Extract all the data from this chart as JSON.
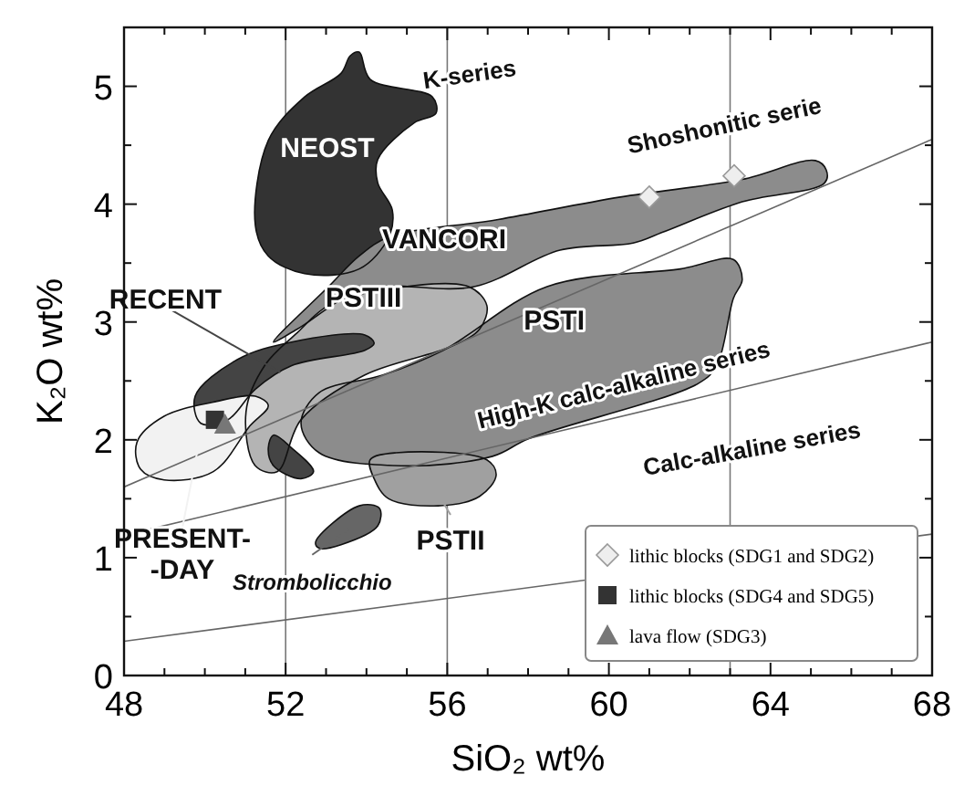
{
  "chart_data": {
    "type": "scatter",
    "xlabel": "SiO₂ wt%",
    "ylabel": "K₂O wt%",
    "xlim": [
      48,
      68
    ],
    "ylim": [
      0,
      5.5
    ],
    "xticks": [
      48,
      {
        "value": 49,
        "label": null
      },
      {
        "value": 50,
        "label": null
      },
      {
        "value": 51,
        "label": null
      },
      52,
      {
        "value": 53,
        "label": null
      },
      {
        "value": 54,
        "label": null
      },
      {
        "value": 55,
        "label": null
      },
      56,
      {
        "value": 57,
        "label": null
      },
      {
        "value": 58,
        "label": null
      },
      {
        "value": 59,
        "label": null
      },
      60,
      {
        "value": 61,
        "label": null
      },
      {
        "value": 62,
        "label": null
      },
      {
        "value": 63,
        "label": null
      },
      64,
      {
        "value": 65,
        "label": null
      },
      {
        "value": 66,
        "label": null
      },
      {
        "value": 67,
        "label": null
      },
      68
    ],
    "yticks": [
      0,
      {
        "value": 0.5,
        "label": null
      },
      1,
      {
        "value": 1.5,
        "label": null
      },
      2,
      {
        "value": 2.5,
        "label": null
      },
      3,
      {
        "value": 3.5,
        "label": null
      },
      4,
      {
        "value": 4.5,
        "label": null
      },
      5
    ],
    "legend": "bottom right",
    "grid": false,
    "ref_lines": [
      {
        "axis": "x",
        "value": 52,
        "color": "#777777"
      },
      {
        "axis": "x",
        "value": 56,
        "color": "#777777"
      },
      {
        "axis": "x",
        "value": 63,
        "color": "#777777"
      }
    ],
    "series": [
      {
        "type": "area",
        "name": "NEOST",
        "color": "#333333",
        "x": [
          53.82,
          54.09,
          55.63,
          55.72,
          55.18,
          54.28,
          54.28,
          54.64,
          54.55,
          53.82,
          52.47,
          51.57,
          51.25,
          51.57,
          52.47,
          53.37,
          53.6
        ],
        "values": [
          5.29,
          5.06,
          4.91,
          4.77,
          4.69,
          4.38,
          4.18,
          3.95,
          3.72,
          3.45,
          3.41,
          3.56,
          3.82,
          4.54,
          4.91,
          5.11,
          5.26
        ]
      },
      {
        "type": "area",
        "name": "VANCORI",
        "color": "#8c8c8c",
        "x": [
          54.55,
          57.26,
          60.28,
          63.3,
          65.11,
          65.38,
          65.34,
          63.3,
          61.32,
          60.6,
          58.79,
          56.67,
          53.96,
          52.29,
          51.7,
          53.06,
          53.82
        ],
        "values": [
          3.72,
          3.87,
          4.06,
          4.21,
          4.37,
          4.29,
          4.18,
          4.02,
          3.76,
          3.67,
          3.61,
          3.3,
          3.28,
          2.94,
          2.83,
          3.3,
          3.56
        ]
      },
      {
        "type": "area",
        "name": "PSTI",
        "color": "#8c8c8c",
        "x": [
          55.9,
          58.47,
          61.77,
          63.08,
          63.3,
          63.08,
          62.67,
          62.22,
          58.02,
          57.12,
          54.86,
          52.83,
          52.38,
          52.83,
          54.41
        ],
        "values": [
          2.76,
          3.3,
          3.45,
          3.53,
          3.36,
          3.2,
          2.63,
          2.48,
          2.01,
          1.86,
          1.78,
          1.89,
          2.14,
          2.4,
          2.55
        ]
      },
      {
        "type": "area",
        "name": "PSTIII",
        "color": "#b4b4b4",
        "x": [
          52.29,
          53.06,
          54.55,
          56.53,
          56.98,
          56.8,
          56.08,
          53.96,
          52.38,
          51.79,
          51.25,
          51.02,
          51.48
        ],
        "values": [
          2.91,
          3.14,
          3.28,
          3.3,
          3.14,
          2.94,
          2.79,
          2.55,
          2.17,
          1.73,
          1.78,
          2.24,
          2.63
        ]
      },
      {
        "type": "area",
        "name": "RECENT",
        "color": "#444444",
        "x": [
          49.76,
          50.8,
          52.15,
          53.96,
          54.19,
          53.96,
          52.15,
          51.25,
          50.57,
          49.9
        ],
        "values": [
          2.37,
          2.68,
          2.83,
          2.89,
          2.82,
          2.76,
          2.63,
          2.43,
          2.17,
          2.14
        ]
      },
      {
        "type": "area",
        "color": "#444444",
        "x": [
          51.7,
          52.15,
          52.69,
          52.38,
          51.7,
          51.57
        ],
        "values": [
          2.04,
          1.93,
          1.73,
          1.67,
          1.78,
          1.93
        ]
      },
      {
        "type": "area",
        "name": "PRESENT-\n-DAY",
        "color": "#f2f2f2",
        "x": [
          48.32,
          48.99,
          50.21,
          51.25,
          51.57,
          51.12,
          50.21,
          48.99,
          48.41
        ],
        "values": [
          1.98,
          2.2,
          2.32,
          2.37,
          2.29,
          2.12,
          1.73,
          1.66,
          1.75
        ]
      },
      {
        "type": "area",
        "name": "PSTII",
        "color": "#a0a0a0",
        "x": [
          54.09,
          54.73,
          56.98,
          57.21,
          56.8,
          55.77,
          54.55,
          54.19
        ],
        "values": [
          1.83,
          1.89,
          1.83,
          1.7,
          1.52,
          1.44,
          1.5,
          1.67
        ]
      },
      {
        "type": "area",
        "name": "Strombolicchio",
        "color": "#666666",
        "x": [
          52.74,
          53.82,
          54.32,
          54.28,
          53.37,
          52.83
        ],
        "values": [
          1.13,
          1.44,
          1.42,
          1.27,
          1.11,
          1.08
        ]
      },
      {
        "type": "line",
        "color": "#666666",
        "x": [
          48,
          68
        ],
        "values": [
          1.6,
          4.55
        ]
      },
      {
        "type": "line",
        "color": "#666666",
        "x": [
          48,
          68
        ],
        "values": [
          1.19,
          2.83
        ]
      },
      {
        "type": "line",
        "color": "#666666",
        "x": [
          48,
          68
        ],
        "values": [
          0.29,
          1.2
        ]
      },
      {
        "name": "lithic blocks (SDG1 and SDG2)",
        "color": "#eeeeee",
        "marker": "diamond",
        "x": [
          61,
          63.1
        ],
        "values": [
          4.06,
          4.24
        ]
      },
      {
        "name": "lithic blocks (SDG4 and SDG5)",
        "color": "#333333",
        "marker": "square",
        "x": [
          50.25
        ],
        "values": [
          2.17
        ]
      },
      {
        "name": "lava flow (SDG3)",
        "color": "#777777",
        "marker": "triangle",
        "x": [
          50.5
        ],
        "values": [
          2.13
        ]
      }
    ],
    "annotations": [
      "K-series",
      "Shoshonitic serie",
      "High-K calc-alkaline series",
      "Calc-alkaline series"
    ]
  }
}
